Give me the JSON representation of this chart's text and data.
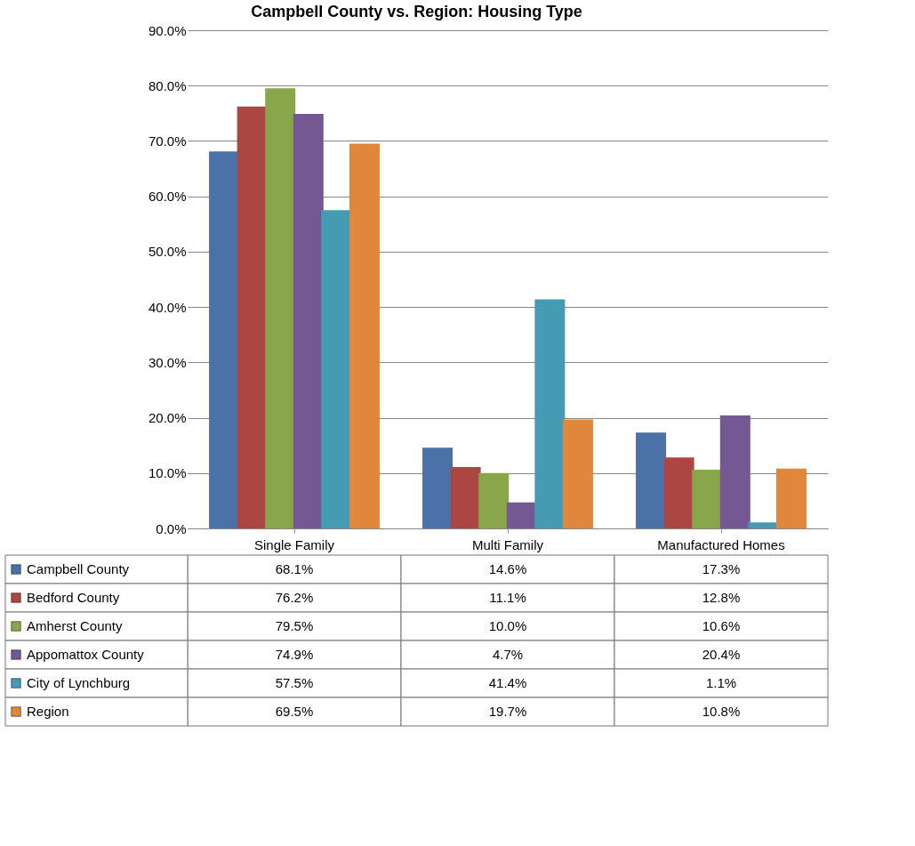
{
  "chart_data": {
    "type": "bar",
    "title": "Campbell County vs. Region: Housing Type",
    "categories": [
      "Single Family",
      "Multi Family",
      "Manufactured Homes"
    ],
    "series": [
      {
        "name": "Campbell County",
        "color": "#4a72a8",
        "values": [
          68.1,
          14.6,
          17.3
        ],
        "value_labels": [
          "68.1%",
          "14.6%",
          "17.3%"
        ]
      },
      {
        "name": "Bedford County",
        "color": "#ab4643",
        "values": [
          76.2,
          11.1,
          12.8
        ],
        "value_labels": [
          "76.2%",
          "11.1%",
          "12.8%"
        ]
      },
      {
        "name": "Amherst County",
        "color": "#8aa64b",
        "values": [
          79.5,
          10.0,
          10.6
        ],
        "value_labels": [
          "79.5%",
          "10.0%",
          "10.6%"
        ]
      },
      {
        "name": "Appomattox County",
        "color": "#735893",
        "values": [
          74.9,
          4.7,
          20.4
        ],
        "value_labels": [
          "74.9%",
          "4.7%",
          "20.4%"
        ]
      },
      {
        "name": "City of Lynchburg",
        "color": "#459bb3",
        "values": [
          57.5,
          41.4,
          1.1
        ],
        "value_labels": [
          "57.5%",
          "41.4%",
          "1.1%"
        ]
      },
      {
        "name": "Region",
        "color": "#e0873c",
        "values": [
          69.5,
          19.7,
          10.8
        ],
        "value_labels": [
          "69.5%",
          "19.7%",
          "10.8%"
        ]
      }
    ],
    "ylim": [
      0,
      90
    ],
    "yticks": [
      {
        "value": 0,
        "label": "0.0%"
      },
      {
        "value": 10,
        "label": "10.0%"
      },
      {
        "value": 20,
        "label": "20.0%"
      },
      {
        "value": 30,
        "label": "30.0%"
      },
      {
        "value": 40,
        "label": "40.0%"
      },
      {
        "value": 50,
        "label": "50.0%"
      },
      {
        "value": 60,
        "label": "60.0%"
      },
      {
        "value": 70,
        "label": "70.0%"
      },
      {
        "value": 80,
        "label": "80.0%"
      },
      {
        "value": 90,
        "label": "90.0%"
      }
    ],
    "grid": "y",
    "legend": "bottom"
  }
}
